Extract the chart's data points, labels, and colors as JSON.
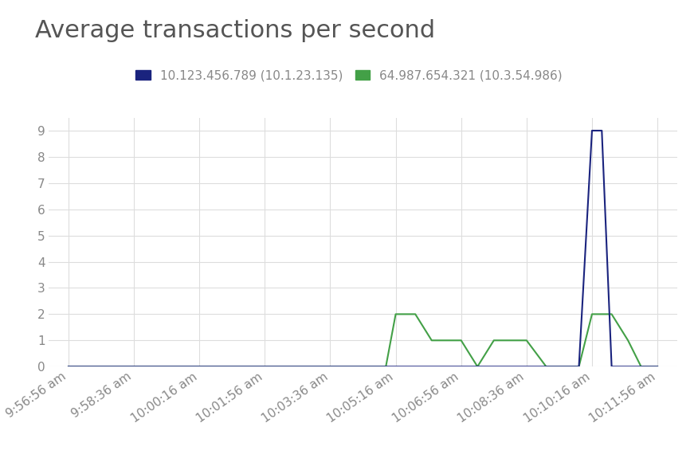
{
  "title": "Average transactions per second",
  "title_fontsize": 22,
  "title_color": "#555555",
  "background_color": "#ffffff",
  "grid_color": "#dddddd",
  "series1_label": "10.123.456.789 (10.1.23.135)",
  "series1_color": "#1a237e",
  "series2_label": "64.987.654.321 (10.3.54.986)",
  "series2_color": "#43a047",
  "x_labels": [
    "9:56:56 am",
    "9:58:36 am",
    "10:00:16 am",
    "10:01:56 am",
    "10:03:36 am",
    "10:05:16 am",
    "10:06:56 am",
    "10:08:36 am",
    "10:10:16 am",
    "10:11:56 am"
  ],
  "s1_x": [
    0,
    1,
    2,
    3,
    4,
    5,
    6,
    7,
    7.8,
    8.0,
    8.15,
    8.3,
    9
  ],
  "s1_y": [
    0,
    0,
    0,
    0,
    0,
    0,
    0,
    0,
    0,
    9,
    9,
    0,
    0
  ],
  "s2_x": [
    0,
    1,
    2,
    3,
    4,
    4.85,
    5.0,
    5.3,
    5.55,
    5.8,
    6.0,
    6.25,
    6.5,
    6.8,
    7.0,
    7.3,
    7.8,
    8.0,
    8.15,
    8.3,
    8.55,
    8.75,
    9
  ],
  "s2_y": [
    0,
    0,
    0,
    0,
    0,
    0,
    2,
    2,
    1,
    1,
    1,
    0,
    1,
    1,
    1,
    0,
    0,
    2,
    2,
    2,
    1,
    0,
    0
  ],
  "ylim": [
    0,
    9.5
  ],
  "yticks": [
    0,
    1,
    2,
    3,
    4,
    5,
    6,
    7,
    8,
    9
  ],
  "tick_label_fontsize": 11,
  "tick_label_color": "#888888",
  "legend_fontsize": 11
}
